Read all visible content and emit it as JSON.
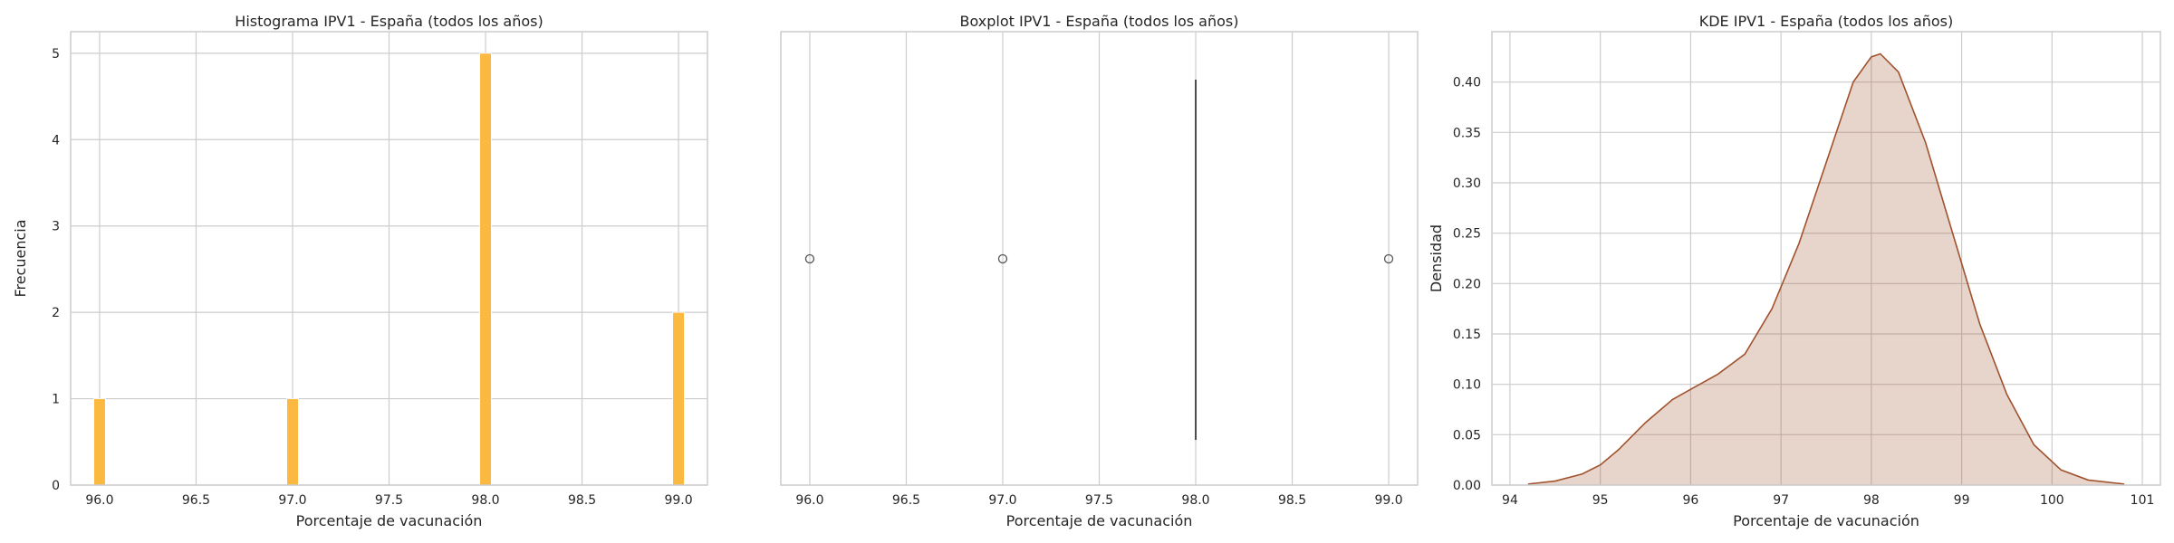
{
  "chart_data": [
    {
      "type": "bar",
      "title": "Histograma IPV1 - España (todos los años)",
      "xlabel": "Porcentaje de vacunación",
      "ylabel": "Frecuencia",
      "xlim": [
        95.85,
        99.15
      ],
      "ylim": [
        0,
        5.25
      ],
      "xticks": [
        "96.0",
        "96.5",
        "97.0",
        "97.5",
        "98.0",
        "98.5",
        "99.0"
      ],
      "yticks": [
        "0",
        "1",
        "2",
        "3",
        "4",
        "5"
      ],
      "bins": [
        {
          "value": 96.0,
          "count": 1
        },
        {
          "value": 97.0,
          "count": 1
        },
        {
          "value": 98.0,
          "count": 5
        },
        {
          "value": 99.0,
          "count": 2
        }
      ],
      "bin_width": 0.06,
      "grid": true,
      "color": "#fbb942"
    },
    {
      "type": "boxplot",
      "title": "Boxplot IPV1 - España (todos los años)",
      "xlabel": "Porcentaje de vacunación",
      "ylabel": "",
      "xlim": [
        95.85,
        99.15
      ],
      "xticks": [
        "96.0",
        "96.5",
        "97.0",
        "97.5",
        "98.0",
        "98.5",
        "99.0"
      ],
      "median": 98.0,
      "q1": 98.0,
      "q3": 98.0,
      "whisker_low": 98.0,
      "whisker_high": 98.0,
      "outliers": [
        96.0,
        97.0,
        99.0
      ],
      "grid": true,
      "color": "#4c4c4c"
    },
    {
      "type": "area",
      "title": "KDE IPV1 - España (todos los años)",
      "xlabel": "Porcentaje de vacunación",
      "ylabel": "Densidad",
      "xlim": [
        93.8,
        101.2
      ],
      "ylim": [
        0,
        0.45
      ],
      "xticks": [
        "94",
        "95",
        "96",
        "97",
        "98",
        "99",
        "100",
        "101"
      ],
      "yticks": [
        "0.00",
        "0.05",
        "0.10",
        "0.15",
        "0.20",
        "0.25",
        "0.30",
        "0.35",
        "0.40"
      ],
      "x": [
        94.2,
        94.5,
        94.8,
        95.0,
        95.2,
        95.5,
        95.8,
        96.0,
        96.3,
        96.6,
        96.9,
        97.2,
        97.5,
        97.8,
        98.0,
        98.1,
        98.3,
        98.6,
        98.9,
        99.2,
        99.5,
        99.8,
        100.1,
        100.4,
        100.8
      ],
      "y": [
        0.001,
        0.004,
        0.011,
        0.02,
        0.035,
        0.062,
        0.085,
        0.095,
        0.11,
        0.13,
        0.175,
        0.24,
        0.32,
        0.4,
        0.425,
        0.428,
        0.41,
        0.34,
        0.25,
        0.16,
        0.09,
        0.04,
        0.015,
        0.005,
        0.001
      ],
      "grid": true,
      "color": "#a0522d"
    }
  ]
}
